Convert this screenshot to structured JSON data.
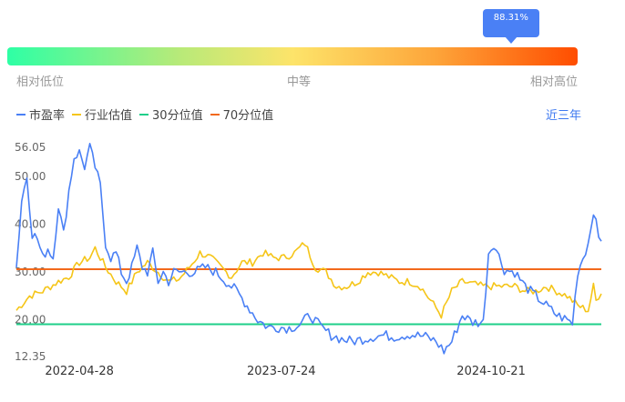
{
  "indicator": {
    "percentile_label": "88.31%",
    "percentile": 0.8831,
    "low_label": "相对低位",
    "mid_label": "中等",
    "high_label": "相对高位"
  },
  "range_link": "近三年",
  "colors": {
    "pe": "#4a80f5",
    "industry": "#f5c518",
    "p30": "#1fcf8a",
    "p70": "#f2691c"
  },
  "chart_data": {
    "type": "line",
    "legend": [
      "市盈率",
      "行业估值",
      "30分位值",
      "70分位值"
    ],
    "y_ticks": [
      {
        "value": 56.05,
        "label": "56.05"
      },
      {
        "value": 50,
        "label": "50.00"
      },
      {
        "value": 40,
        "label": "40.00"
      },
      {
        "value": 30,
        "label": "30.00"
      },
      {
        "value": 20,
        "label": "20.00"
      },
      {
        "value": 12.35,
        "label": "12.35"
      }
    ],
    "ylim": [
      12.35,
      56.05
    ],
    "x_ticks": [
      {
        "index": 24,
        "label": "2022-04-28"
      },
      {
        "index": 101,
        "label": "2023-07-24"
      },
      {
        "index": 181,
        "label": "2024-10-21"
      }
    ],
    "n_points": 224,
    "p30": 19.1,
    "p70": 30.6,
    "series": [
      {
        "name": "市盈率",
        "key": "pe",
        "anchors": [
          [
            0,
            31
          ],
          [
            2,
            45
          ],
          [
            4,
            50
          ],
          [
            6,
            38
          ],
          [
            8,
            37
          ],
          [
            10,
            33
          ],
          [
            12,
            35
          ],
          [
            14,
            33
          ],
          [
            16,
            44
          ],
          [
            18,
            38
          ],
          [
            20,
            47
          ],
          [
            22,
            54
          ],
          [
            24,
            55
          ],
          [
            26,
            52
          ],
          [
            28,
            56
          ],
          [
            30,
            52
          ],
          [
            32,
            48
          ],
          [
            34,
            36
          ],
          [
            36,
            33
          ],
          [
            38,
            34
          ],
          [
            40,
            30
          ],
          [
            42,
            28
          ],
          [
            44,
            31
          ],
          [
            46,
            35
          ],
          [
            48,
            31
          ],
          [
            50,
            30
          ],
          [
            52,
            34
          ],
          [
            54,
            28
          ],
          [
            56,
            30
          ],
          [
            58,
            28
          ],
          [
            60,
            30
          ],
          [
            64,
            30
          ],
          [
            68,
            30
          ],
          [
            72,
            31
          ],
          [
            76,
            30
          ],
          [
            80,
            28
          ],
          [
            84,
            26
          ],
          [
            88,
            23
          ],
          [
            92,
            20
          ],
          [
            96,
            18.5
          ],
          [
            100,
            18.5
          ],
          [
            104,
            18.3
          ],
          [
            108,
            19
          ],
          [
            112,
            21
          ],
          [
            116,
            18.5
          ],
          [
            120,
            16.8
          ],
          [
            124,
            16
          ],
          [
            128,
            15.5
          ],
          [
            132,
            16
          ],
          [
            136,
            16.5
          ],
          [
            140,
            16.8
          ],
          [
            144,
            16.5
          ],
          [
            150,
            17
          ],
          [
            156,
            16.5
          ],
          [
            160,
            15.5
          ],
          [
            163,
            13.5
          ],
          [
            166,
            15.5
          ],
          [
            170,
            21
          ],
          [
            174,
            19.5
          ],
          [
            178,
            19.5
          ],
          [
            180,
            34
          ],
          [
            182,
            36
          ],
          [
            186,
            30.5
          ],
          [
            190,
            30
          ],
          [
            194,
            27
          ],
          [
            198,
            25
          ],
          [
            202,
            23
          ],
          [
            206,
            21
          ],
          [
            210,
            20
          ],
          [
            212,
            19.3
          ],
          [
            214,
            30
          ],
          [
            216,
            33
          ],
          [
            218,
            36
          ],
          [
            220,
            43
          ],
          [
            222,
            37
          ],
          [
            223,
            37
          ]
        ]
      },
      {
        "name": "行业估值",
        "key": "industry",
        "anchors": [
          [
            0,
            22
          ],
          [
            5,
            25
          ],
          [
            10,
            26
          ],
          [
            16,
            28
          ],
          [
            20,
            29
          ],
          [
            24,
            32
          ],
          [
            28,
            33
          ],
          [
            30,
            35
          ],
          [
            34,
            31
          ],
          [
            38,
            28
          ],
          [
            42,
            26
          ],
          [
            46,
            30
          ],
          [
            50,
            32
          ],
          [
            54,
            30
          ],
          [
            58,
            28
          ],
          [
            62,
            28.5
          ],
          [
            66,
            31
          ],
          [
            70,
            34
          ],
          [
            74,
            33
          ],
          [
            78,
            31
          ],
          [
            82,
            29
          ],
          [
            86,
            32
          ],
          [
            90,
            32
          ],
          [
            94,
            34
          ],
          [
            98,
            33
          ],
          [
            102,
            33
          ],
          [
            106,
            34
          ],
          [
            110,
            36
          ],
          [
            114,
            31
          ],
          [
            118,
            30
          ],
          [
            122,
            27
          ],
          [
            126,
            27
          ],
          [
            130,
            28
          ],
          [
            134,
            30
          ],
          [
            138,
            30
          ],
          [
            142,
            29
          ],
          [
            146,
            28
          ],
          [
            150,
            28
          ],
          [
            154,
            27
          ],
          [
            158,
            24
          ],
          [
            162,
            21
          ],
          [
            166,
            26
          ],
          [
            170,
            28
          ],
          [
            174,
            27.5
          ],
          [
            178,
            27
          ],
          [
            182,
            27
          ],
          [
            186,
            27
          ],
          [
            190,
            27
          ],
          [
            194,
            26
          ],
          [
            198,
            26
          ],
          [
            202,
            27
          ],
          [
            206,
            26
          ],
          [
            210,
            25
          ],
          [
            214,
            23
          ],
          [
            216,
            22.5
          ],
          [
            218,
            22
          ],
          [
            220,
            27
          ],
          [
            221,
            24
          ],
          [
            223,
            26
          ]
        ]
      }
    ]
  }
}
